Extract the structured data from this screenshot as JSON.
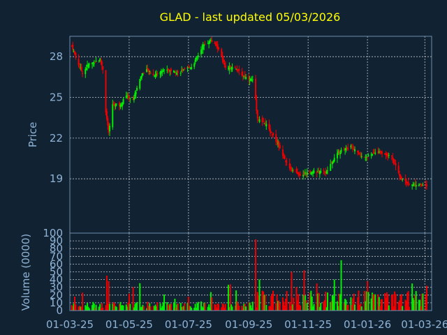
{
  "title": "GLAD - last updated 05/03/2026",
  "chart_data": [
    {
      "type": "candlestick",
      "ylabel": "Price",
      "ylim": [
        15.0,
        29.5
      ],
      "yticks": [
        19,
        22,
        25,
        28
      ],
      "ytick_labels": [
        "19",
        "22",
        "25",
        "28"
      ],
      "x_range": [
        "2025-03-01",
        "2026-03-08"
      ],
      "xticks": [
        "2025-03-01",
        "2025-05-01",
        "2025-07-01",
        "2025-09-01",
        "2025-11-01",
        "2026-01-01",
        "2026-03-01"
      ],
      "xtick_labels": [
        "01-03-25",
        "01-05-25",
        "01-07-25",
        "01-09-25",
        "01-11-25",
        "01-01-26",
        "01-03-26"
      ],
      "grid": true,
      "colors": {
        "up": "#00ee00",
        "down": "#ee0000",
        "text": "#8fb4d6",
        "title": "#ffff00",
        "background": "#112233"
      },
      "anchors": [
        {
          "date": "2025-03-03",
          "close": 28.8
        },
        {
          "date": "2025-03-08",
          "close": 27.7
        },
        {
          "date": "2025-03-14",
          "close": 26.8
        },
        {
          "date": "2025-03-20",
          "close": 27.4
        },
        {
          "date": "2025-04-01",
          "close": 27.8
        },
        {
          "date": "2025-04-04",
          "close": 27.1
        },
        {
          "date": "2025-04-06",
          "close": 24.5
        },
        {
          "date": "2025-04-10",
          "close": 22.3
        },
        {
          "date": "2025-04-14",
          "close": 24.5
        },
        {
          "date": "2025-04-22",
          "close": 24.4
        },
        {
          "date": "2025-04-28",
          "close": 25.2
        },
        {
          "date": "2025-05-05",
          "close": 24.8
        },
        {
          "date": "2025-05-12",
          "close": 26.4
        },
        {
          "date": "2025-05-18",
          "close": 27.1
        },
        {
          "date": "2025-05-26",
          "close": 26.6
        },
        {
          "date": "2025-06-08",
          "close": 27.1
        },
        {
          "date": "2025-06-20",
          "close": 26.8
        },
        {
          "date": "2025-07-05",
          "close": 27.3
        },
        {
          "date": "2025-07-16",
          "close": 28.8
        },
        {
          "date": "2025-07-24",
          "close": 29.2
        },
        {
          "date": "2025-08-01",
          "close": 28.6
        },
        {
          "date": "2025-08-08",
          "close": 27.1
        },
        {
          "date": "2025-08-16",
          "close": 27.3
        },
        {
          "date": "2025-08-26",
          "close": 26.6
        },
        {
          "date": "2025-09-06",
          "close": 26.2
        },
        {
          "date": "2025-09-10",
          "close": 23.4
        },
        {
          "date": "2025-09-20",
          "close": 22.9
        },
        {
          "date": "2025-10-01",
          "close": 21.6
        },
        {
          "date": "2025-10-12",
          "close": 19.8
        },
        {
          "date": "2025-10-22",
          "close": 19.3
        },
        {
          "date": "2025-11-05",
          "close": 19.5
        },
        {
          "date": "2025-11-20",
          "close": 19.5
        },
        {
          "date": "2025-12-01",
          "close": 20.9
        },
        {
          "date": "2025-12-15",
          "close": 21.4
        },
        {
          "date": "2025-12-28",
          "close": 20.5
        },
        {
          "date": "2026-01-12",
          "close": 21.0
        },
        {
          "date": "2026-01-26",
          "close": 20.6
        },
        {
          "date": "2026-02-04",
          "close": 19.0
        },
        {
          "date": "2026-02-14",
          "close": 18.6
        },
        {
          "date": "2026-03-03",
          "close": 18.5
        }
      ]
    },
    {
      "type": "bar",
      "ylabel": "Volume (0000)",
      "ylim": [
        0,
        100
      ],
      "yticks": [
        0,
        10,
        20,
        30,
        40,
        50,
        60,
        70,
        80,
        90,
        100
      ],
      "ytick_labels": [
        "0",
        "10",
        "20",
        "30",
        "40",
        "50",
        "60",
        "70",
        "80",
        "90",
        "100"
      ],
      "x_range": [
        "2025-03-01",
        "2026-03-08"
      ],
      "grid": true,
      "spikes": [
        {
          "date": "2025-04-08",
          "value": 45
        },
        {
          "date": "2025-04-10",
          "value": 38
        },
        {
          "date": "2025-09-08",
          "value": 92
        },
        {
          "date": "2025-09-12",
          "value": 40
        },
        {
          "date": "2025-10-15",
          "value": 50
        },
        {
          "date": "2025-10-28",
          "value": 52
        },
        {
          "date": "2025-11-10",
          "value": 35
        },
        {
          "date": "2025-12-05",
          "value": 65
        },
        {
          "date": "2025-11-28",
          "value": 40
        },
        {
          "date": "2026-01-01",
          "value": 38
        },
        {
          "date": "2026-02-16",
          "value": 35
        },
        {
          "date": "2026-03-03",
          "value": 32
        }
      ]
    }
  ]
}
